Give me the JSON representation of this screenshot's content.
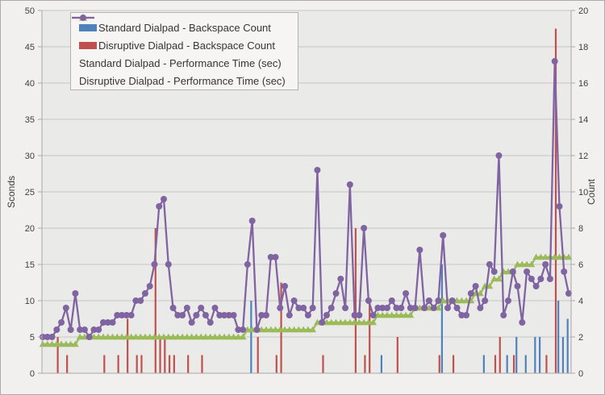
{
  "chart_data": {
    "type": "combo",
    "title": "",
    "n_points": 114,
    "grid": "horizontal",
    "legend_position": "top-left-inside",
    "x_axis": {
      "label": "",
      "tick_labels_visible": false
    },
    "y_axis_left": {
      "label": "Sconds",
      "min": 0,
      "max": 50,
      "tick_step": 5
    },
    "y_axis_right": {
      "label": "Count",
      "min": 0,
      "max": 20,
      "tick_step": 2
    },
    "series": [
      {
        "name": "Standard Dialpad - Backspace Count",
        "type": "bar",
        "axis": "right",
        "color": "#4F81BD",
        "points": [
          [
            45,
            4
          ],
          [
            73,
            1
          ],
          [
            86,
            6
          ],
          [
            95,
            1
          ],
          [
            100,
            1
          ],
          [
            102,
            2
          ],
          [
            104,
            1
          ],
          [
            106,
            2
          ],
          [
            107,
            2
          ],
          [
            111,
            4
          ],
          [
            112,
            2
          ],
          [
            113,
            3
          ]
        ]
      },
      {
        "name": "Disruptive Dialpad - Backspace Count",
        "type": "bar",
        "axis": "right",
        "color": "#C0504D",
        "points": [
          [
            3,
            2
          ],
          [
            5,
            1
          ],
          [
            13,
            1
          ],
          [
            16,
            1
          ],
          [
            18,
            3
          ],
          [
            20,
            1
          ],
          [
            21,
            1
          ],
          [
            24,
            8
          ],
          [
            25,
            2
          ],
          [
            26,
            2
          ],
          [
            27,
            1
          ],
          [
            28,
            1
          ],
          [
            31,
            1
          ],
          [
            34,
            1
          ],
          [
            46,
            2
          ],
          [
            50,
            1
          ],
          [
            51,
            5
          ],
          [
            60,
            1
          ],
          [
            67,
            8
          ],
          [
            69,
            1
          ],
          [
            70,
            4
          ],
          [
            76,
            2
          ],
          [
            85,
            1
          ],
          [
            88,
            1
          ],
          [
            97,
            1
          ],
          [
            98,
            2
          ],
          [
            101,
            1
          ],
          [
            108,
            1
          ],
          [
            110,
            19
          ]
        ]
      },
      {
        "name": "Standard Dialpad - Performance Time (sec)",
        "type": "line",
        "axis": "left",
        "marker": "triangle",
        "color": "#9BBB59",
        "values": [
          4,
          4,
          4,
          4,
          4,
          4,
          4,
          4,
          5,
          5,
          5,
          5,
          5,
          5,
          5,
          5,
          5,
          5,
          5,
          5,
          5,
          5,
          5,
          5,
          5,
          5,
          5,
          5,
          5,
          5,
          5,
          5,
          5,
          5,
          5,
          5,
          5,
          5,
          5,
          5,
          5,
          5,
          5,
          5,
          6,
          6,
          6,
          6,
          6,
          6,
          6,
          6,
          6,
          6,
          6,
          6,
          6,
          6,
          6,
          7,
          7,
          7,
          7,
          7,
          7,
          7,
          7,
          7,
          7,
          7,
          7,
          7,
          8,
          8,
          8,
          8,
          8,
          8,
          8,
          8,
          9,
          9,
          9,
          9,
          9,
          9,
          10,
          10,
          10,
          10,
          10,
          10,
          10,
          11,
          11,
          12,
          12,
          13,
          13,
          14,
          14,
          14,
          15,
          15,
          15,
          15,
          16,
          16,
          16,
          16,
          16,
          16,
          16,
          16
        ]
      },
      {
        "name": "Disruptive Dialpad - Performance Time (sec)",
        "type": "line",
        "axis": "left",
        "marker": "circle",
        "color": "#8064A2",
        "values": [
          5,
          5,
          5,
          6,
          7,
          9,
          6,
          11,
          6,
          6,
          5,
          6,
          6,
          7,
          7,
          7,
          8,
          8,
          8,
          8,
          10,
          10,
          11,
          12,
          15,
          23,
          24,
          15,
          9,
          8,
          8,
          9,
          7,
          8,
          9,
          8,
          7,
          9,
          8,
          8,
          8,
          8,
          6,
          6,
          15,
          21,
          6,
          8,
          8,
          16,
          16,
          9,
          12,
          8,
          10,
          9,
          9,
          8,
          9,
          28,
          7,
          8,
          9,
          11,
          13,
          9,
          26,
          8,
          8,
          20,
          10,
          8,
          9,
          9,
          9,
          10,
          9,
          9,
          11,
          9,
          9,
          17,
          9,
          10,
          9,
          10,
          19,
          9,
          10,
          9,
          8,
          8,
          11,
          12,
          9,
          10,
          15,
          14,
          30,
          8,
          10,
          14,
          12,
          7,
          14,
          13,
          12,
          13,
          15,
          13,
          43,
          23,
          14,
          11
        ]
      }
    ]
  },
  "colors": {
    "background": "#f1f0ef",
    "plot_background": "#eaeae9",
    "gridline": "#c6c5c4",
    "axis_line": "#a9a8a7",
    "tick_text": "#3f3e3d",
    "axis_title_text": "#3a3a3a",
    "legend_background": "#f6f5f4",
    "legend_border": "#b3b2b1"
  }
}
